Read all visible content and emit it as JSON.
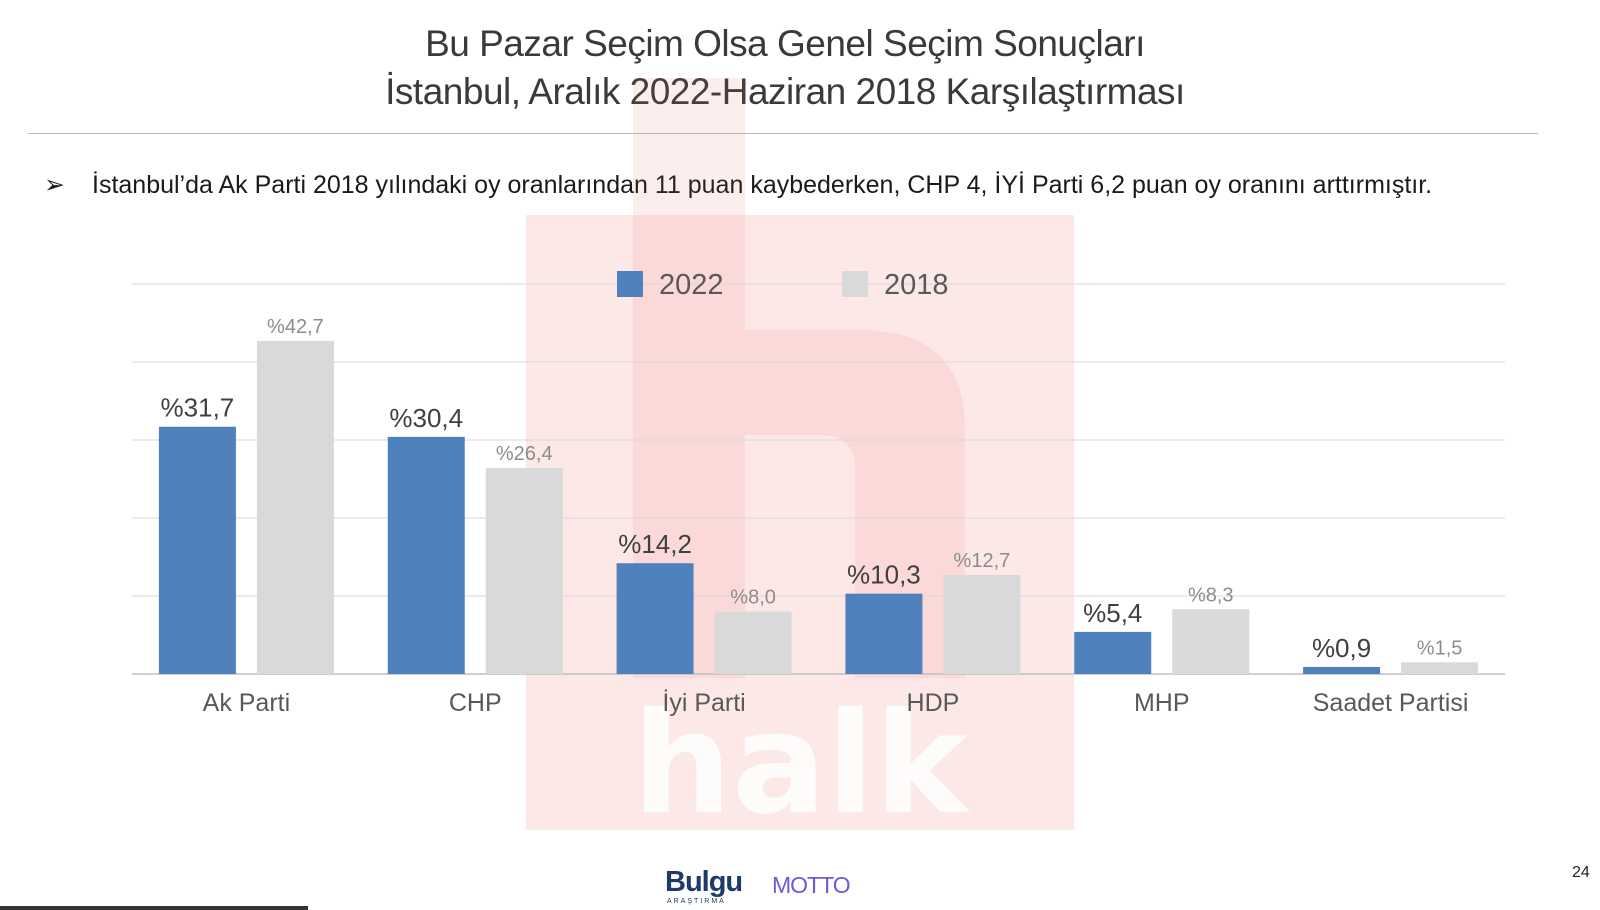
{
  "title": {
    "line1": "Bu Pazar Seçim Olsa Genel Seçim Sonuçları",
    "line2": "İstanbul, Aralık 2022-Haziran 2018 Karşılaştırması"
  },
  "bullet": {
    "marker": "➢",
    "text": "İstanbul’da Ak Parti 2018 yılındaki oy oranlarından 11 puan kaybederken, CHP 4, İYİ Parti 6,2 puan oy oranını arttırmıştır."
  },
  "chart_data": {
    "type": "bar",
    "categories": [
      "Ak Parti",
      "CHP",
      "İyi Parti",
      "HDP",
      "MHP",
      "Saadet Partisi"
    ],
    "series": [
      {
        "name": "2022",
        "values": [
          31.7,
          30.4,
          14.2,
          10.3,
          5.4,
          0.9
        ],
        "labels": [
          "%31,7",
          "%30,4",
          "%14,2",
          "%10,3",
          "%5,4",
          "%0,9"
        ],
        "color": "#4f81bd"
      },
      {
        "name": "2018",
        "values": [
          42.7,
          26.4,
          8.0,
          12.7,
          8.3,
          1.5
        ],
        "labels": [
          "%42,7",
          "%26,4",
          "%8,0",
          "%12,7",
          "%8,3",
          "%1,5"
        ],
        "color": "#d9d9d9"
      }
    ],
    "ylim": [
      0,
      50
    ],
    "grid": true,
    "legend": "top-center"
  },
  "watermark": {
    "text": "halk",
    "color": "#f05a5a"
  },
  "footer": {
    "logo_bulgu": "Bulgu",
    "logo_bulgu_sub": "ARAŞTIRMA",
    "logo_motto": "MOTTO"
  },
  "page_number": "24",
  "colors": {
    "bar_2022": "#4f81bd",
    "bar_2018": "#d9d9d9",
    "grid": "#d9d9d9",
    "axis": "#bfbfbf"
  }
}
